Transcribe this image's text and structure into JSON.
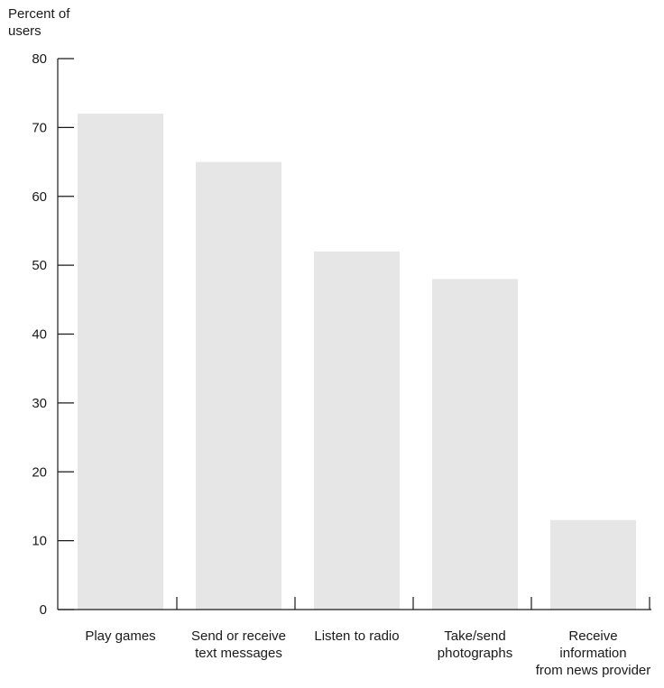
{
  "chart_data": {
    "type": "bar",
    "title": "",
    "xlabel": "",
    "ylabel": "Percent of\nusers",
    "ylim": [
      0,
      80
    ],
    "yticks": [
      0,
      10,
      20,
      30,
      40,
      50,
      60,
      70,
      80
    ],
    "categories": [
      "Play games",
      "Send or receive\ntext messages",
      "Listen to radio",
      "Take/send\nphotographs",
      "Receive\ninformation\nfrom news provider"
    ],
    "values": [
      72,
      65,
      52,
      48,
      13
    ],
    "bar_color": "#e6e6e7",
    "axis_color": "#1a1a1a",
    "grid": false
  }
}
